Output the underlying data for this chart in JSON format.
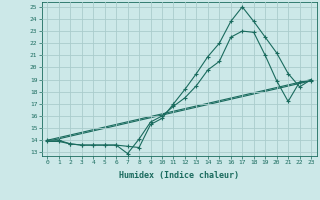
{
  "xlabel": "Humidex (Indice chaleur)",
  "bg_color": "#cce8e8",
  "grid_color": "#b0d4d4",
  "line_color": "#1a6b5e",
  "xlim": [
    -0.5,
    23.5
  ],
  "ylim": [
    12.7,
    25.4
  ],
  "xticks": [
    0,
    1,
    2,
    3,
    4,
    5,
    6,
    7,
    8,
    9,
    10,
    11,
    12,
    13,
    14,
    15,
    16,
    17,
    18,
    19,
    20,
    21,
    22,
    23
  ],
  "yticks": [
    13,
    14,
    15,
    16,
    17,
    18,
    19,
    20,
    21,
    22,
    23,
    24,
    25
  ],
  "line1_x": [
    0,
    1,
    2,
    3,
    4,
    5,
    6,
    7,
    8,
    9,
    10,
    11,
    12,
    13,
    14,
    15,
    16,
    17,
    18,
    19,
    20,
    21,
    22,
    23
  ],
  "line1_y": [
    13.9,
    13.9,
    13.7,
    13.6,
    13.6,
    13.6,
    13.6,
    12.9,
    14.1,
    15.5,
    16.0,
    16.8,
    17.5,
    18.5,
    19.8,
    20.5,
    22.5,
    23.0,
    22.9,
    21.0,
    18.9,
    17.2,
    18.8,
    18.9
  ],
  "line2_x": [
    0,
    1,
    2,
    3,
    4,
    5,
    6,
    7,
    8,
    9,
    10,
    11,
    12,
    13,
    14,
    15,
    16,
    17,
    18,
    19,
    20,
    21,
    22,
    23
  ],
  "line2_y": [
    14.0,
    14.0,
    13.7,
    13.6,
    13.6,
    13.6,
    13.6,
    13.5,
    13.4,
    15.3,
    15.8,
    17.0,
    18.2,
    19.5,
    20.9,
    22.0,
    23.8,
    25.0,
    23.8,
    22.5,
    21.2,
    19.5,
    18.4,
    19.0
  ],
  "line3_x": [
    0,
    23
  ],
  "line3_y": [
    13.9,
    18.9
  ],
  "line4_x": [
    0,
    23
  ],
  "line4_y": [
    14.0,
    19.0
  ]
}
